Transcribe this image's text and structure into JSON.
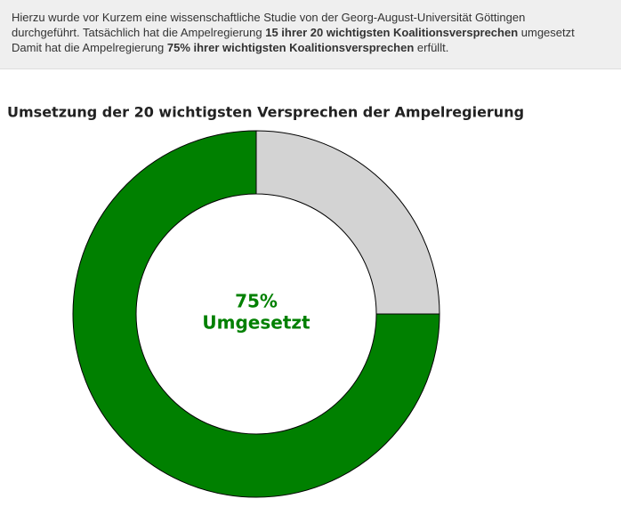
{
  "intro": {
    "lines": [
      [
        {
          "text": "Hierzu wurde vor Kurzem eine wissenschaftliche Studie von der Georg-August-Universität Göttingen",
          "bold": false
        }
      ],
      [
        {
          "text": "durchgeführt. Tatsächlich hat die Ampelregierung ",
          "bold": false
        },
        {
          "text": "15 ihrer 20 wichtigsten Koalitionsversprechen",
          "bold": true
        },
        {
          "text": " umgesetzt",
          "bold": false
        }
      ],
      [
        {
          "text": "Damit hat die Ampelregierung ",
          "bold": false
        },
        {
          "text": "75% ihrer wichtigsten Koalitionsversprechen",
          "bold": true
        },
        {
          "text": " erfüllt.",
          "bold": false
        }
      ]
    ]
  },
  "chart_data": {
    "type": "donut",
    "title": "Umsetzung der 20 wichtigsten Versprechen der Ampelregierung",
    "categories": [
      null,
      null
    ],
    "values": [
      75,
      25
    ],
    "value_labels": [
      "75%",
      null
    ],
    "colors": [
      "#008000",
      "#d3d3d3"
    ],
    "center_text": "Umgesetzt",
    "center_color": "#008000"
  }
}
